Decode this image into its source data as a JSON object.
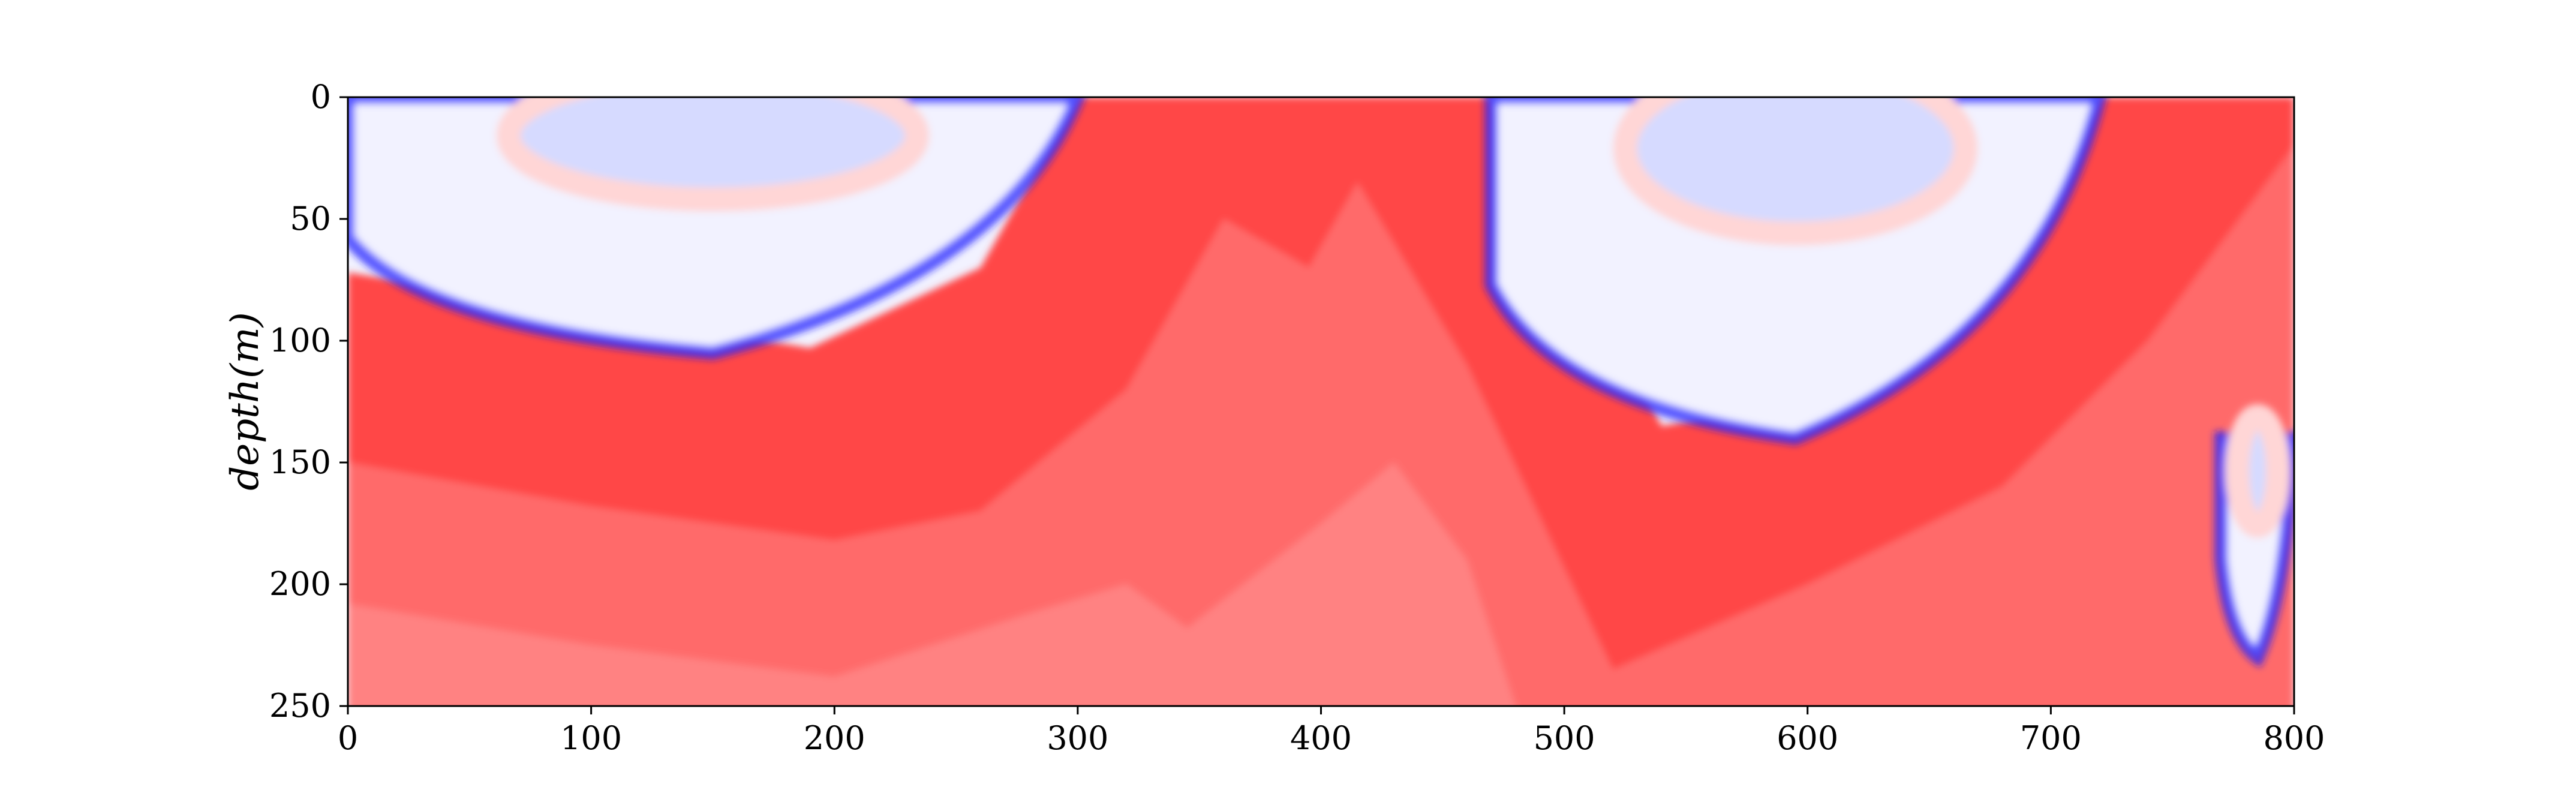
{
  "chart_data": {
    "type": "heatmap",
    "title": "",
    "xlabel": "",
    "ylabel": "depth(m)",
    "xlim": [
      0,
      800
    ],
    "ylim": [
      250,
      0
    ],
    "x_ticks": [
      0,
      100,
      200,
      300,
      400,
      500,
      600,
      700,
      800
    ],
    "y_ticks": [
      0,
      50,
      100,
      150,
      200,
      250
    ],
    "colormap": "bwr",
    "colors": {
      "deep_red": "#ff0000",
      "red": "#ff4646",
      "medium_red": "#ff6b6b",
      "light_red": "#ff8282",
      "pale_red": "#ffd6d6",
      "near_white": "#f2f2ff",
      "pale_blue": "#d6daff",
      "blue": "#1a1aff"
    },
    "bands": [
      {
        "level": "red",
        "top": [
          [
            0,
            72
          ],
          [
            100,
            88
          ],
          [
            190,
            103
          ],
          [
            260,
            70
          ],
          [
            300,
            0
          ],
          [
            470,
            0
          ],
          [
            540,
            135
          ],
          [
            620,
            120
          ],
          [
            700,
            40
          ],
          [
            720,
            0
          ],
          [
            800,
            0
          ]
        ]
      },
      {
        "level": "medium_red",
        "top": [
          [
            0,
            150
          ],
          [
            100,
            168
          ],
          [
            200,
            182
          ],
          [
            260,
            170
          ],
          [
            320,
            120
          ],
          [
            360,
            50
          ],
          [
            395,
            70
          ],
          [
            415,
            35
          ],
          [
            460,
            110
          ],
          [
            520,
            235
          ],
          [
            600,
            200
          ],
          [
            680,
            160
          ],
          [
            740,
            100
          ],
          [
            800,
            20
          ]
        ]
      },
      {
        "level": "light_red",
        "top": [
          [
            0,
            208
          ],
          [
            100,
            225
          ],
          [
            200,
            238
          ],
          [
            280,
            212
          ],
          [
            320,
            200
          ],
          [
            345,
            218
          ],
          [
            400,
            175
          ],
          [
            430,
            150
          ],
          [
            460,
            190
          ],
          [
            480,
            250
          ]
        ]
      }
    ],
    "blue_lobes": [
      {
        "x_range": [
          0,
          300
        ],
        "depth_range": [
          0,
          105
        ],
        "note": "upper left lobe"
      },
      {
        "x_range": [
          470,
          720
        ],
        "depth_range": [
          0,
          140
        ],
        "note": "upper middle lobe"
      },
      {
        "x_range": [
          770,
          800
        ],
        "depth_range": [
          140,
          230
        ],
        "note": "lower right lobe"
      }
    ]
  }
}
